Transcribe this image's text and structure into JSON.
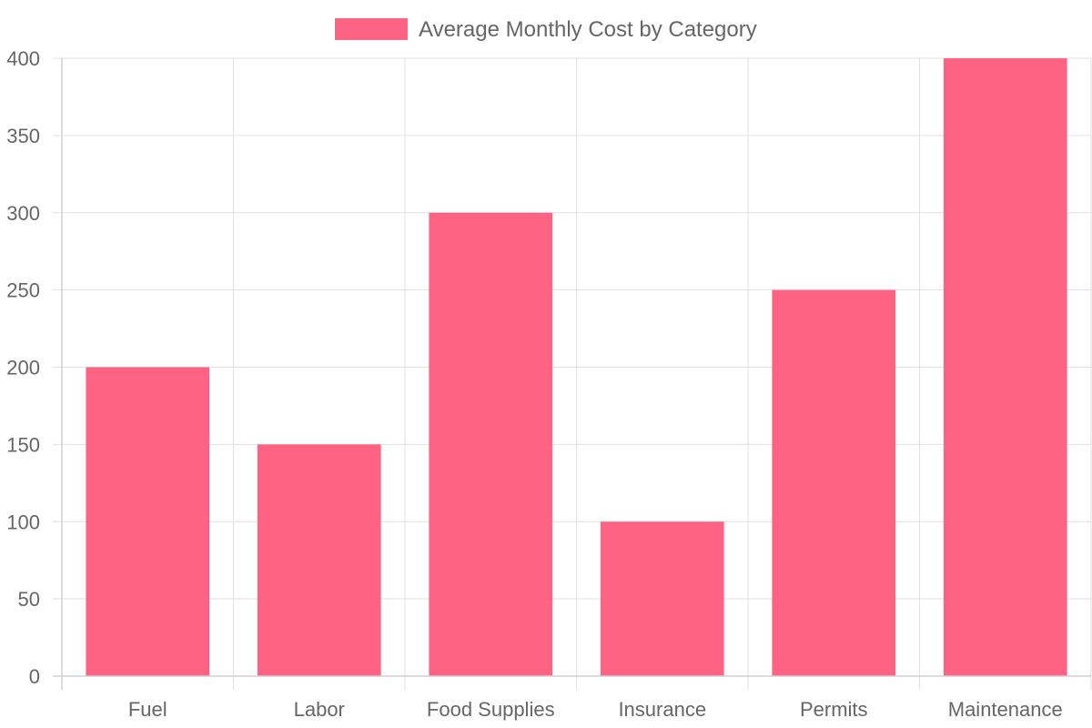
{
  "chart_data": {
    "type": "bar",
    "categories": [
      "Fuel",
      "Labor",
      "Food Supplies",
      "Insurance",
      "Permits",
      "Maintenance"
    ],
    "series": [
      {
        "name": "Average Monthly Cost by Category",
        "values": [
          200,
          150,
          300,
          100,
          250,
          400
        ],
        "color": "#ff6384"
      }
    ],
    "ylim": [
      0,
      400
    ],
    "y_ticks": [
      0,
      50,
      100,
      150,
      200,
      250,
      300,
      350,
      400
    ],
    "grid": true,
    "legend_position": "top-center",
    "colors": {
      "grid": "#e1e1e1",
      "axis": "#d0d0d0",
      "text": "#666666"
    }
  }
}
